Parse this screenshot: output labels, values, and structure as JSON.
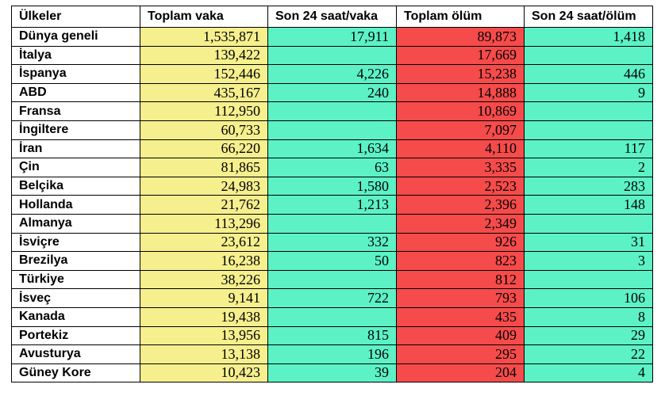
{
  "colors": {
    "total_cases_bg": "#f5ef8e",
    "daily_bg": "#5cf2c6",
    "total_deaths_bg": "#f64b4b"
  },
  "headers": [
    "Ülkeler",
    "Toplam vaka",
    "Son 24 saat/vaka",
    "Toplam ölüm",
    "Son 24 saat/ölüm"
  ],
  "rows": [
    [
      "Dünya geneli",
      "1,535,871",
      "17,911",
      "89,873",
      "1,418"
    ],
    [
      "İtalya",
      "139,422",
      "",
      "17,669",
      ""
    ],
    [
      "İspanya",
      "152,446",
      "4,226",
      "15,238",
      "446"
    ],
    [
      "ABD",
      "435,167",
      "240",
      "14,888",
      "9"
    ],
    [
      "Fransa",
      "112,950",
      "",
      "10,869",
      ""
    ],
    [
      "İngiltere",
      "60,733",
      "",
      "7,097",
      ""
    ],
    [
      "İran",
      "66,220",
      "1,634",
      "4,110",
      "117"
    ],
    [
      "Çin",
      "81,865",
      "63",
      "3,335",
      "2"
    ],
    [
      "Belçika",
      "24,983",
      "1,580",
      "2,523",
      "283"
    ],
    [
      "Hollanda",
      "21,762",
      "1,213",
      "2,396",
      "148"
    ],
    [
      "Almanya",
      "113,296",
      "",
      "2,349",
      ""
    ],
    [
      "İsviçre",
      "23,612",
      "332",
      "926",
      "31"
    ],
    [
      "Brezilya",
      "16,238",
      "50",
      "823",
      "3"
    ],
    [
      "Türkiye",
      "38,226",
      "",
      "812",
      ""
    ],
    [
      "İsveç",
      "9,141",
      "722",
      "793",
      "106"
    ],
    [
      "Kanada",
      "19,438",
      "",
      "435",
      "8"
    ],
    [
      "Portekiz",
      "13,956",
      "815",
      "409",
      "29"
    ],
    [
      "Avusturya",
      "13,138",
      "196",
      "295",
      "22"
    ],
    [
      "Güney Kore",
      "10,423",
      "39",
      "204",
      "4"
    ]
  ]
}
